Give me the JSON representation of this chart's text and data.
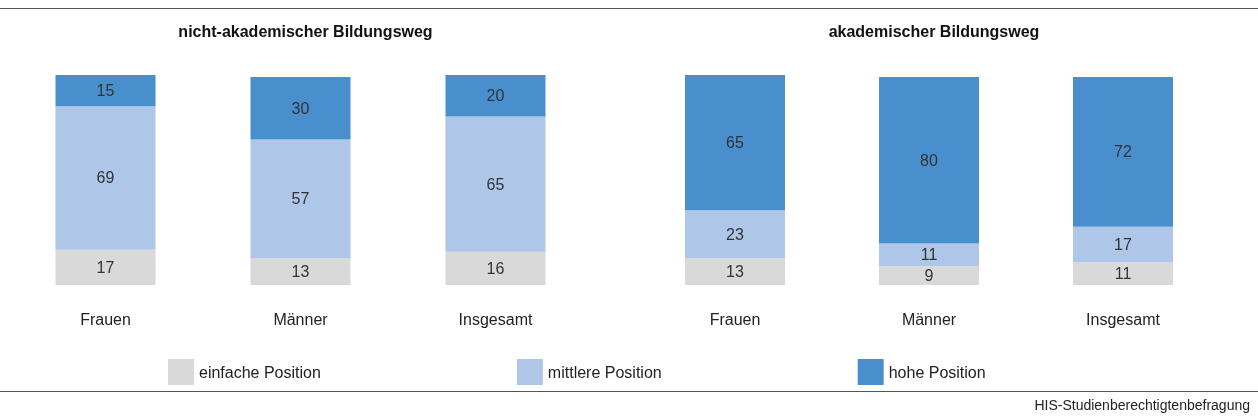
{
  "chart_data": [
    {
      "type": "bar",
      "stacked": true,
      "title": "nicht-akademischer Bildungsweg",
      "categories": [
        "Frauen",
        "Männer",
        "Insgesamt"
      ],
      "series": [
        {
          "name": "einfache Position",
          "color": "#d9d9d9",
          "values": [
            17,
            13,
            16
          ]
        },
        {
          "name": "mittlere Position",
          "color": "#aec6e8",
          "values": [
            69,
            57,
            65
          ]
        },
        {
          "name": "hohe Position",
          "color": "#4a8fcd",
          "values": [
            15,
            30,
            20
          ]
        }
      ],
      "data_labels": true,
      "legend": "bottom",
      "tick_labels": "x",
      "annotations": [
        "HIS-Studienberechtigtenbefragung"
      ]
    },
    {
      "type": "bar",
      "stacked": true,
      "title": "akademischer Bildungsweg",
      "categories": [
        "Frauen",
        "Männer",
        "Insgesamt"
      ],
      "series": [
        {
          "color": "#d9d9d9",
          "values": [
            13,
            9,
            11
          ]
        },
        {
          "color": "#aec6e8",
          "values": [
            23,
            11,
            17
          ]
        },
        {
          "color": "#4a8fcd",
          "values": [
            65,
            80,
            72
          ]
        }
      ],
      "data_labels": true,
      "tick_labels": "x"
    }
  ]
}
